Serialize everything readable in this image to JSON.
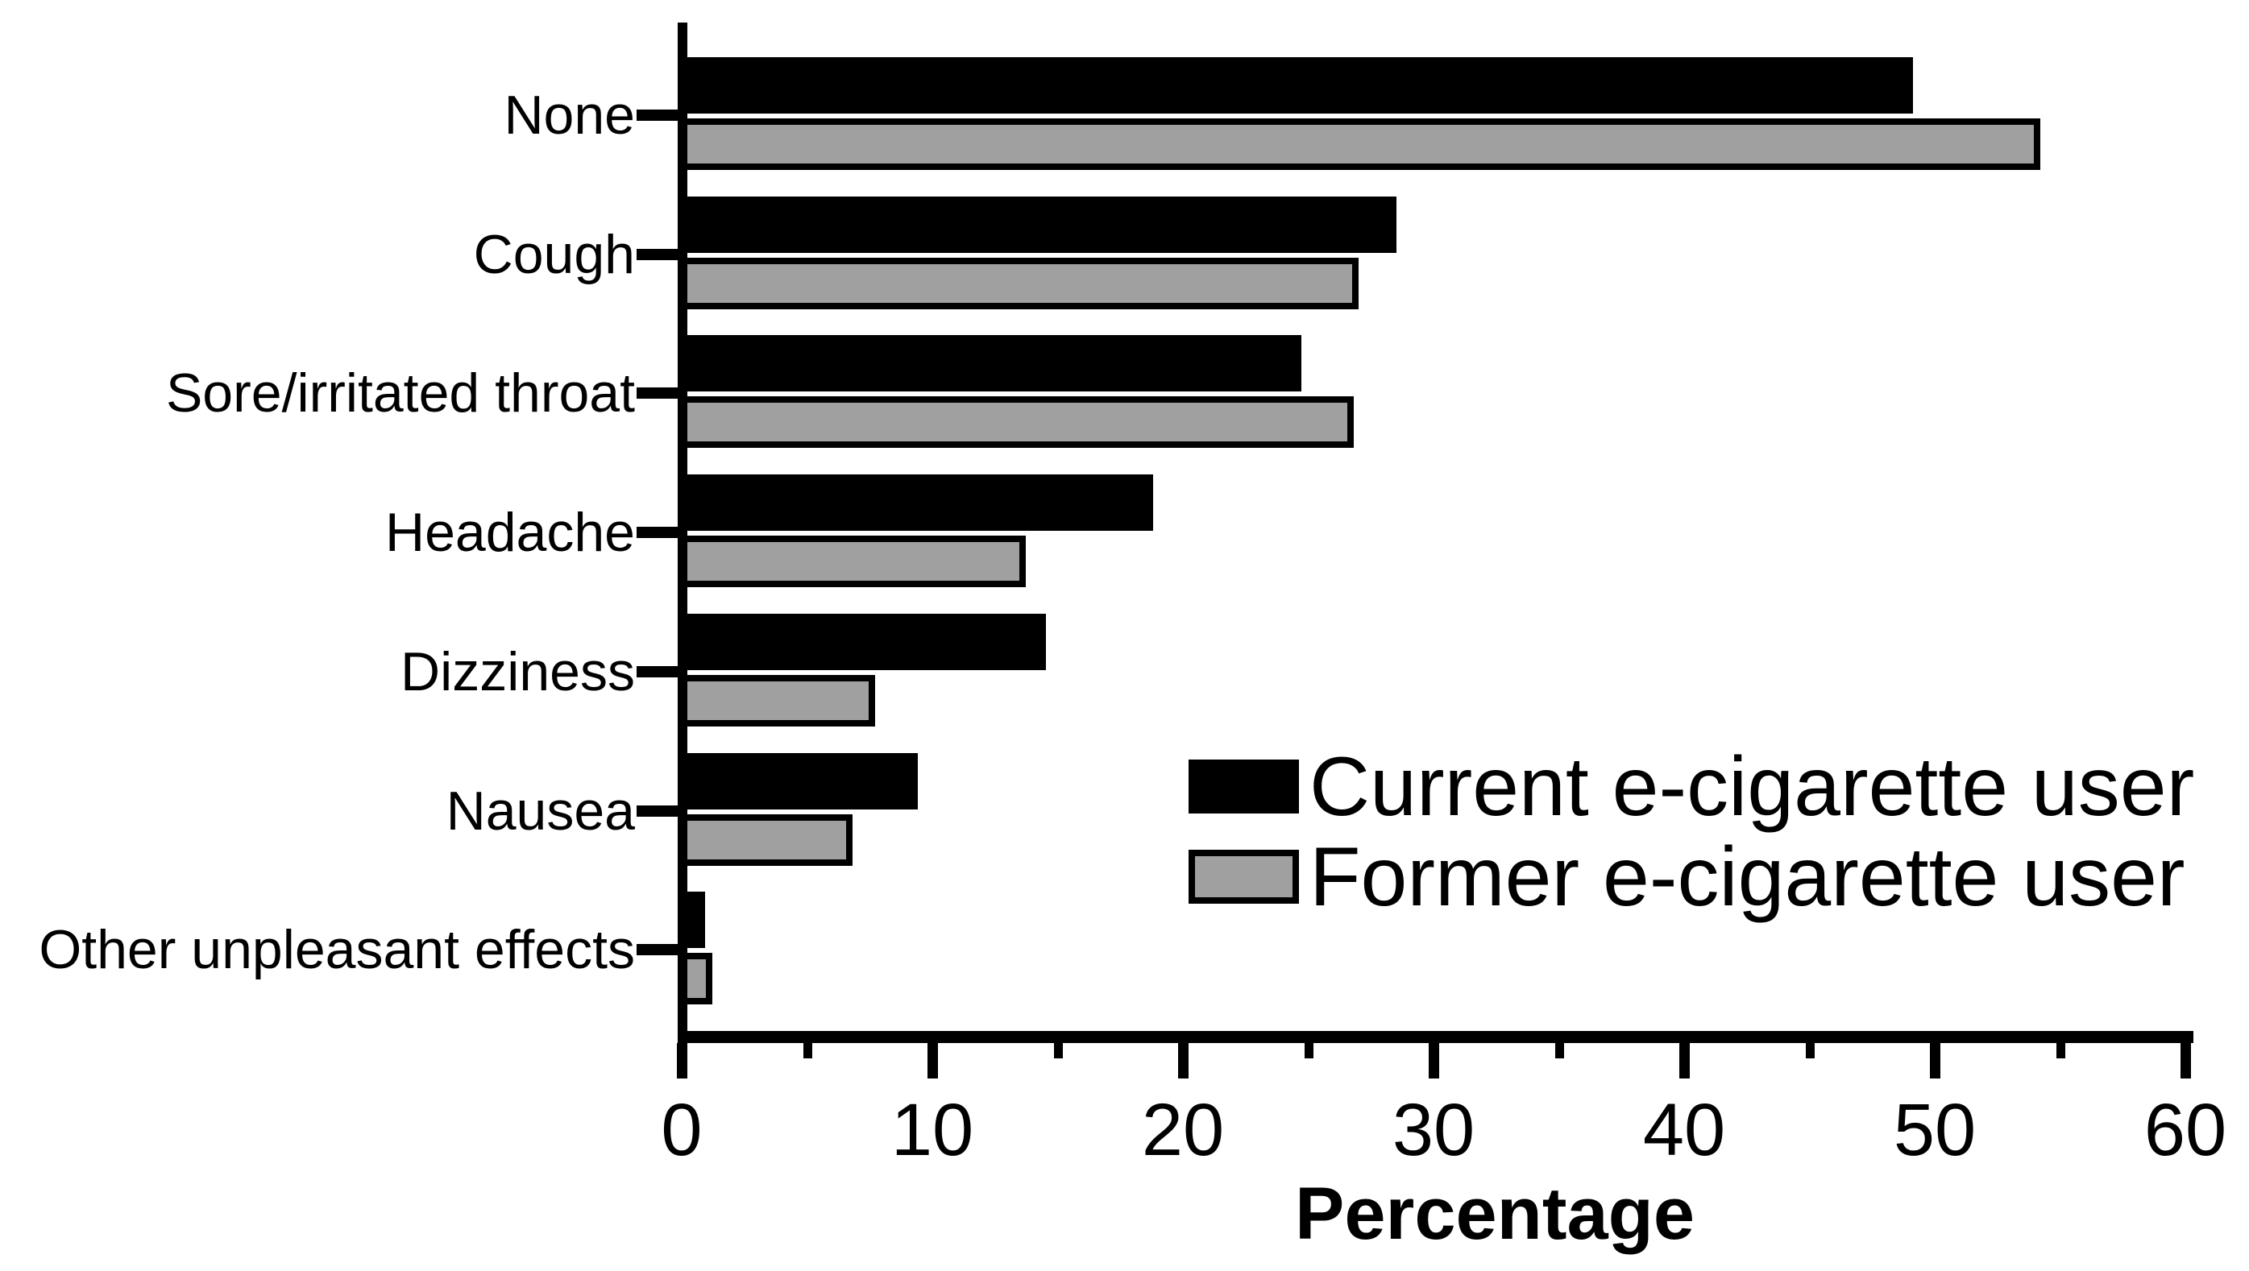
{
  "chart_data": {
    "type": "bar",
    "orientation": "horizontal",
    "title": "",
    "xlabel": "Percentage",
    "ylabel": "",
    "xlim": [
      0,
      60
    ],
    "x_ticks": [
      0,
      10,
      20,
      30,
      40,
      50,
      60
    ],
    "x_minor_ticks": [
      5,
      15,
      25,
      35,
      45,
      55
    ],
    "grid": false,
    "background": "#ffffff",
    "axis_color": "#000000",
    "legend_position": "center-right",
    "categories": [
      "None",
      "Cough",
      "Sore/irritated throat",
      "Headache",
      "Dizziness",
      "Nausea",
      "Other unpleasant effects"
    ],
    "series": [
      {
        "name": "Current e-cigarette user",
        "color": "#000000",
        "border_color": "#000000",
        "values": [
          48.9,
          28.3,
          24.5,
          18.6,
          14.3,
          9.2,
          0.7
        ]
      },
      {
        "name": "Former e-cigarette user",
        "color": "#a0a0a0",
        "border_color": "#000000",
        "values": [
          54.0,
          26.8,
          26.6,
          13.5,
          7.5,
          6.6,
          1.0
        ]
      }
    ]
  }
}
